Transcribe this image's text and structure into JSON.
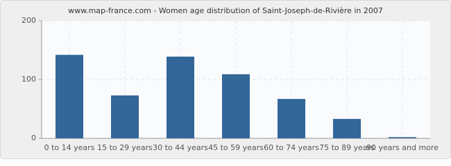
{
  "chart_data": {
    "type": "bar",
    "title": "www.map-france.com - Women age distribution of Saint-Joseph-de-Rivière in 2007",
    "categories": [
      "0 to 14 years",
      "15 to 29 years",
      "30 to 44 years",
      "45 to 59 years",
      "60 to 74 years",
      "75 to 89 years",
      "90 years and more"
    ],
    "values": [
      142,
      73,
      139,
      109,
      67,
      33,
      2
    ],
    "color": "#336699",
    "ylim": [
      0,
      200
    ],
    "yticks": [
      0,
      100,
      200
    ],
    "grid": true
  }
}
